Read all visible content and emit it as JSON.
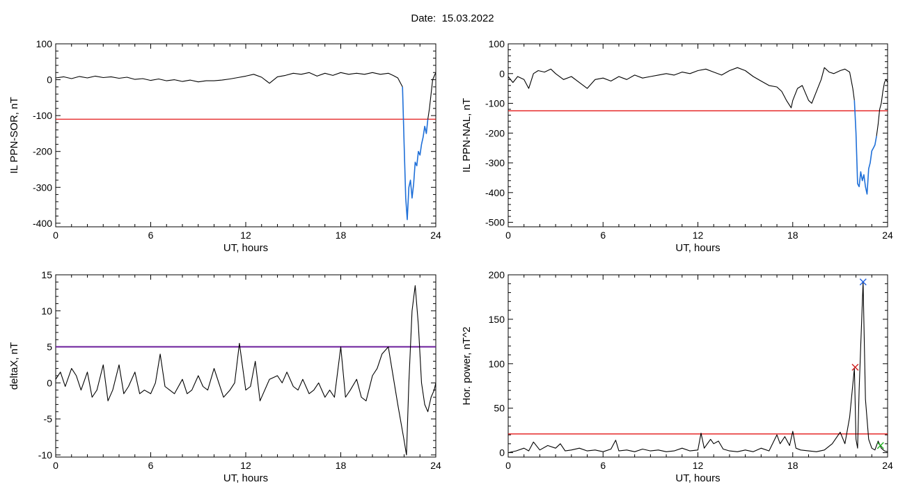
{
  "header": {
    "date_label": "Date:",
    "date_value": "15.03.2022"
  },
  "colors": {
    "axes": "#000000",
    "trace": "#000000",
    "threshold": "#e00000",
    "highlight": "#1e6fd8",
    "threshold_purple": "#6a1b9a",
    "marker_red": "#d02020",
    "marker_blue": "#2060e0",
    "marker_green": "#20b020"
  },
  "chart_data": [
    {
      "id": "il_sor",
      "type": "line",
      "title": "",
      "xlabel": "UT, hours",
      "ylabel": "IL PPN-SOR, nT",
      "xlim": [
        0,
        24
      ],
      "ylim": [
        -410,
        100
      ],
      "xticks": [
        0,
        6,
        12,
        18,
        24
      ],
      "yticks": [
        100,
        0,
        -100,
        -200,
        -300,
        -400
      ],
      "grid": false,
      "threshold": -110,
      "series": [
        {
          "role": "main",
          "x": [
            0,
            0.5,
            1,
            1.5,
            2,
            2.5,
            3,
            3.5,
            4,
            4.5,
            5,
            5.5,
            6,
            6.5,
            7,
            7.5,
            8,
            8.5,
            9,
            9.5,
            10,
            10.5,
            11,
            11.5,
            12,
            12.5,
            13,
            13.5,
            14,
            14.5,
            15,
            15.5,
            16,
            16.5,
            17,
            17.5,
            18,
            18.5,
            19,
            19.5,
            20,
            20.5,
            21,
            21.3,
            21.6,
            21.9
          ],
          "y": [
            5,
            8,
            3,
            9,
            5,
            10,
            6,
            8,
            4,
            7,
            1,
            3,
            -2,
            2,
            -3,
            0,
            -5,
            -1,
            -6,
            -3,
            -3,
            -1,
            2,
            6,
            10,
            15,
            7,
            -10,
            8,
            12,
            18,
            15,
            20,
            10,
            18,
            12,
            20,
            15,
            18,
            15,
            20,
            15,
            18,
            12,
            5,
            -20
          ]
        },
        {
          "role": "highlight",
          "x": [
            21.9,
            22.0,
            22.1,
            22.2,
            22.3,
            22.4,
            22.5,
            22.6,
            22.7,
            22.8,
            22.9,
            23.0,
            23.1,
            23.2,
            23.3,
            23.4,
            23.5
          ],
          "y": [
            -20,
            -180,
            -330,
            -390,
            -300,
            -280,
            -330,
            -290,
            -230,
            -240,
            -200,
            -210,
            -180,
            -160,
            -130,
            -150,
            -110
          ]
        },
        {
          "role": "main",
          "x": [
            23.5,
            23.6,
            23.7,
            23.8,
            23.9,
            24
          ],
          "y": [
            -110,
            -80,
            -40,
            0,
            10,
            20
          ]
        }
      ]
    },
    {
      "id": "il_nal",
      "type": "line",
      "title": "",
      "xlabel": "UT, hours",
      "ylabel": "IL PPN-NAL, nT",
      "xlim": [
        0,
        24
      ],
      "ylim": [
        -515,
        100
      ],
      "xticks": [
        0,
        6,
        12,
        18,
        24
      ],
      "yticks": [
        100,
        0,
        -100,
        -200,
        -300,
        -400,
        -500
      ],
      "grid": false,
      "threshold": -125,
      "series": [
        {
          "role": "main",
          "x": [
            0,
            0.3,
            0.6,
            1,
            1.3,
            1.6,
            1.9,
            2.3,
            2.7,
            3,
            3.5,
            4,
            4.5,
            5,
            5.5,
            6,
            6.5,
            7,
            7.5,
            8,
            8.5,
            9,
            9.5,
            10,
            10.5,
            11,
            11.5,
            12,
            12.5,
            13,
            13.5,
            14,
            14.5,
            15,
            15.5,
            16,
            16.5,
            17,
            17.3,
            17.6,
            17.9,
            18.0,
            18.3,
            18.6,
            19,
            19.2,
            19.5,
            19.8,
            20,
            20.3,
            20.6,
            21,
            21.3,
            21.6,
            21.8,
            21.9
          ],
          "y": [
            -10,
            -30,
            -10,
            -20,
            -50,
            0,
            10,
            5,
            15,
            0,
            -20,
            -10,
            -30,
            -50,
            -20,
            -15,
            -25,
            -10,
            -20,
            -5,
            -15,
            -10,
            -5,
            0,
            -5,
            5,
            0,
            10,
            15,
            5,
            -5,
            10,
            20,
            10,
            -10,
            -25,
            -40,
            -45,
            -60,
            -90,
            -115,
            -90,
            -50,
            -40,
            -90,
            -100,
            -60,
            -20,
            20,
            5,
            0,
            10,
            15,
            5,
            -50,
            -90
          ]
        },
        {
          "role": "highlight",
          "x": [
            21.9,
            22.0,
            22.1,
            22.2,
            22.3,
            22.4,
            22.5,
            22.6,
            22.7,
            22.8,
            22.9,
            23.0,
            23.1,
            23.2,
            23.3
          ],
          "y": [
            -90,
            -200,
            -370,
            -380,
            -330,
            -360,
            -340,
            -380,
            -405,
            -320,
            -300,
            -260,
            -250,
            -240,
            -210
          ]
        },
        {
          "role": "main",
          "x": [
            23.3,
            23.4,
            23.5,
            23.6,
            23.7,
            23.8,
            23.9,
            24
          ],
          "y": [
            -210,
            -170,
            -120,
            -100,
            -60,
            -30,
            -20,
            -30
          ]
        }
      ]
    },
    {
      "id": "delta_x",
      "type": "line",
      "title": "",
      "xlabel": "UT, hours",
      "ylabel": "deltaX, nT",
      "xlim": [
        0,
        24
      ],
      "ylim": [
        -10.3,
        15
      ],
      "xticks": [
        0,
        6,
        12,
        18,
        24
      ],
      "yticks": [
        15,
        10,
        5,
        0,
        -5,
        -10
      ],
      "grid": false,
      "threshold": 5,
      "series": [
        {
          "role": "main",
          "x": [
            0,
            0.3,
            0.6,
            1,
            1.3,
            1.6,
            2,
            2.3,
            2.6,
            3,
            3.3,
            3.6,
            4,
            4.3,
            4.6,
            5,
            5.3,
            5.6,
            6,
            6.3,
            6.6,
            6.9,
            7.2,
            7.5,
            8,
            8.3,
            8.6,
            9,
            9.3,
            9.6,
            10,
            10.3,
            10.6,
            11,
            11.3,
            11.6,
            12,
            12.3,
            12.6,
            12.9,
            13.2,
            13.5,
            14,
            14.3,
            14.6,
            15,
            15.3,
            15.6,
            16,
            16.3,
            16.6,
            17,
            17.3,
            17.6,
            18,
            18.3,
            18.6,
            19,
            19.3,
            19.6,
            20,
            20.3,
            20.6,
            21,
            21.3,
            21.6,
            22,
            22.15,
            22.3,
            22.5,
            22.7,
            22.9,
            23.1,
            23.3,
            23.5,
            23.7,
            23.9,
            24
          ],
          "y": [
            0.5,
            1.5,
            -0.5,
            2,
            1,
            -1,
            1.5,
            -2,
            -1,
            2.5,
            -2.5,
            -1,
            2.5,
            -1.5,
            -0.5,
            1.5,
            -1.5,
            -1,
            -1.5,
            0,
            4,
            -0.5,
            -1,
            -1.5,
            0.5,
            -1.5,
            -1,
            1,
            -0.5,
            -1,
            2,
            0,
            -2,
            -1,
            0,
            5.5,
            -1,
            -0.5,
            3,
            -2.5,
            -1,
            0.5,
            1,
            0,
            1.5,
            -0.5,
            -1,
            0.5,
            -1.5,
            -1,
            0,
            -2,
            -1,
            -2,
            5,
            -2,
            -1,
            0.5,
            -2,
            -2.5,
            1,
            2,
            4,
            5,
            1,
            -3,
            -8,
            -10,
            0,
            10,
            13.5,
            8,
            0,
            -3,
            -4,
            -2,
            -1,
            0
          ]
        }
      ]
    },
    {
      "id": "hor_power",
      "type": "line",
      "title": "",
      "xlabel": "UT, hours",
      "ylabel": "Hor. power, nT^2",
      "xlim": [
        0,
        24
      ],
      "ylim": [
        -5,
        200
      ],
      "xticks": [
        0,
        6,
        12,
        18,
        24
      ],
      "yticks": [
        200,
        150,
        100,
        50,
        0
      ],
      "grid": false,
      "threshold": 21,
      "series": [
        {
          "role": "main",
          "x": [
            0,
            0.5,
            1,
            1.3,
            1.6,
            2,
            2.5,
            3,
            3.3,
            3.6,
            4,
            4.5,
            5,
            5.5,
            6,
            6.5,
            6.8,
            7,
            7.5,
            8,
            8.5,
            9,
            9.5,
            10,
            10.5,
            11,
            11.5,
            12,
            12.2,
            12.4,
            12.8,
            13,
            13.3,
            13.6,
            14,
            14.5,
            15,
            15.5,
            16,
            16.5,
            17,
            17.2,
            17.5,
            17.8,
            18,
            18.2,
            18.5,
            19,
            19.5,
            20,
            20.5,
            21,
            21.3,
            21.6,
            21.9,
            22.0,
            22.1,
            22.2,
            22.3,
            22.45,
            22.6,
            22.8,
            23,
            23.2,
            23.4,
            23.6,
            23.8,
            24
          ],
          "y": [
            0,
            2,
            5,
            2,
            12,
            3,
            8,
            5,
            10,
            2,
            3,
            5,
            2,
            3,
            1,
            4,
            14,
            2,
            3,
            1,
            4,
            2,
            3,
            1,
            2,
            5,
            2,
            3,
            22,
            5,
            15,
            10,
            13,
            4,
            2,
            1,
            3,
            1,
            5,
            2,
            20,
            10,
            18,
            8,
            24,
            5,
            3,
            2,
            1,
            3,
            10,
            23,
            10,
            40,
            95,
            15,
            5,
            70,
            120,
            192,
            60,
            15,
            5,
            3,
            13,
            5,
            2,
            1
          ]
        }
      ],
      "markers": [
        {
          "x": 21.95,
          "y": 96,
          "symbol": "x",
          "color": "red"
        },
        {
          "x": 22.45,
          "y": 192,
          "symbol": "x",
          "color": "blue"
        },
        {
          "x": 23.55,
          "y": 8,
          "symbol": "x",
          "color": "green"
        }
      ]
    }
  ]
}
